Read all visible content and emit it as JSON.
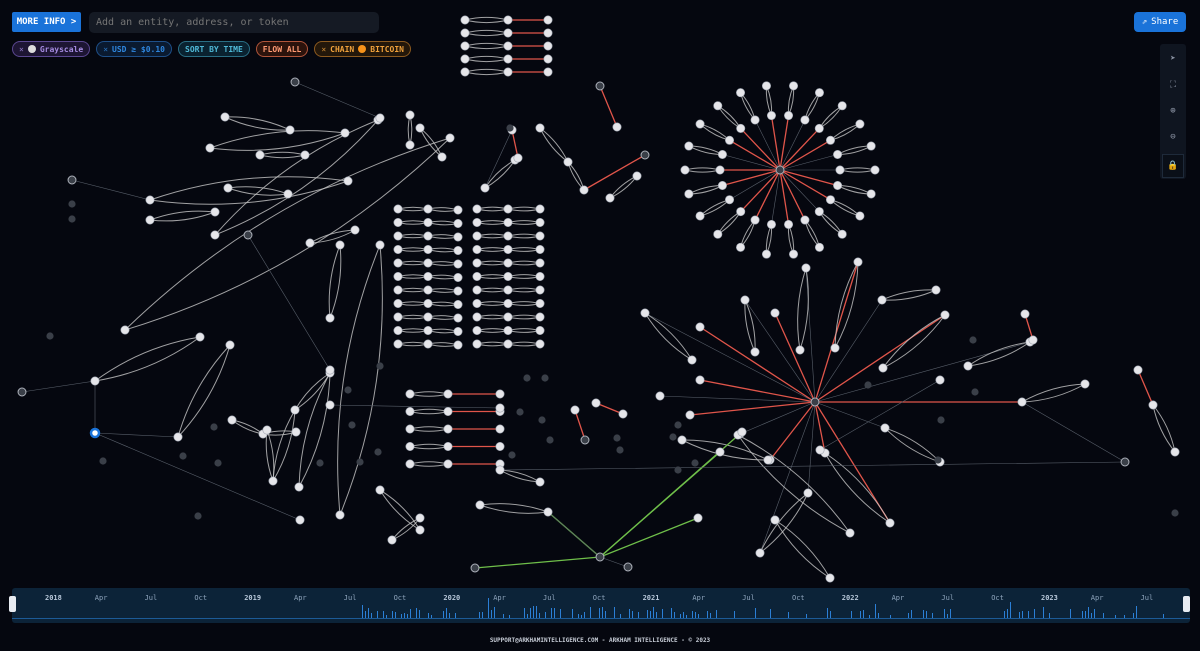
{
  "toolbar": {
    "more_info_label": "MORE INFO >",
    "search_placeholder": "Add an entity, address, or token",
    "share_label": "Share"
  },
  "filters": [
    {
      "label": "Grayscale",
      "removable": true,
      "icon": "grayscale-logo"
    },
    {
      "label": "USD ≥ $0.10",
      "removable": true
    },
    {
      "label": "SORT BY TIME",
      "removable": false
    },
    {
      "label": "FLOW ALL",
      "removable": false
    },
    {
      "label": "CHAIN",
      "value": "BITCOIN",
      "removable": true,
      "icon": "bitcoin-icon"
    }
  ],
  "graph_tools": [
    "pointer-icon",
    "fit-screen-icon",
    "zoom-in-icon",
    "zoom-out-icon",
    "lock-icon"
  ],
  "colors": {
    "accent": "#1a73d9",
    "edge": "#c8c8c8",
    "outflow_edge": "#e0554a",
    "inflow_edge": "#6fbf4a",
    "background": "#05070f"
  },
  "timeline": {
    "labels": [
      "2018",
      "Apr",
      "Jul",
      "Oct",
      "2019",
      "Apr",
      "Jul",
      "Oct",
      "2020",
      "Apr",
      "Jul",
      "Oct",
      "2021",
      "Apr",
      "Jul",
      "Oct",
      "2022",
      "Apr",
      "Jul",
      "Oct",
      "2023",
      "Apr",
      "Jul"
    ]
  },
  "footer": "SUPPORT@ARKHAMINTELLIGENCE.COM - ARKHAM INTELLIGENCE - © 2023"
}
